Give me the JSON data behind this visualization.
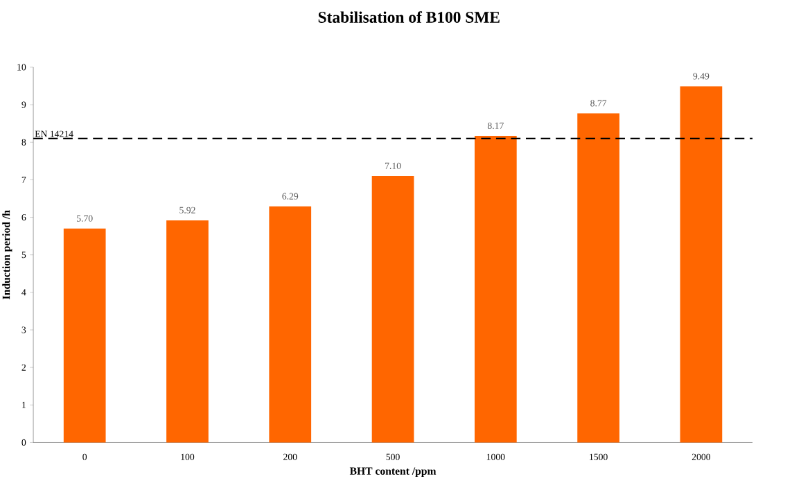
{
  "chart_data": {
    "type": "bar",
    "title": "Stabilisation of B100 SME",
    "xlabel": "BHT content /ppm",
    "ylabel": "Induction period /h",
    "categories": [
      "0",
      "100",
      "200",
      "500",
      "1000",
      "1500",
      "2000"
    ],
    "values": [
      5.7,
      5.92,
      6.29,
      7.1,
      8.17,
      8.77,
      9.49
    ],
    "value_labels": [
      "5.70",
      "5.92",
      "6.29",
      "7.10",
      "8.17",
      "8.77",
      "9.49"
    ],
    "color": "#ff6600",
    "ylim": [
      0,
      10
    ],
    "yticks": [
      0,
      1,
      2,
      3,
      4,
      5,
      6,
      7,
      8,
      9,
      10
    ],
    "ref_lines": [
      {
        "axis": "y",
        "value": 8.1,
        "label": "EN 14214",
        "color": "#000000",
        "line_style": "dashed"
      }
    ]
  }
}
